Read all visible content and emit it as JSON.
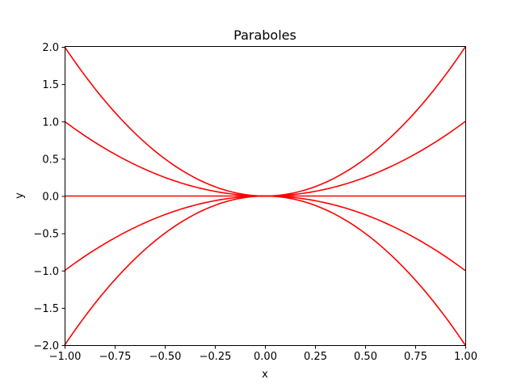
{
  "chart_data": {
    "type": "line",
    "title": "Paraboles",
    "xlabel": "x",
    "ylabel": "y",
    "xlim": [
      -1.0,
      1.0
    ],
    "ylim": [
      -2.0,
      2.0
    ],
    "xticks": [
      -1.0,
      -0.75,
      -0.5,
      -0.25,
      0.0,
      0.25,
      0.5,
      0.75,
      1.0
    ],
    "xtick_labels": [
      "−1.00",
      "−0.75",
      "−0.50",
      "−0.25",
      "0.00",
      "0.25",
      "0.50",
      "0.75",
      "1.00"
    ],
    "yticks": [
      -2.0,
      -1.5,
      -1.0,
      -0.5,
      0.0,
      0.5,
      1.0,
      1.5,
      2.0
    ],
    "ytick_labels": [
      "−2.0",
      "−1.5",
      "−1.0",
      "−0.5",
      "0.0",
      "0.5",
      "1.0",
      "1.5",
      "2.0"
    ],
    "grid": false,
    "line_color": "#ff0000",
    "series": [
      {
        "x": [
          -1.0,
          -0.75,
          -0.5,
          -0.25,
          0.0,
          0.25,
          0.5,
          0.75,
          1.0
        ],
        "y": [
          2.0,
          1.125,
          0.5,
          0.125,
          0.0,
          0.125,
          0.5,
          1.125,
          2.0
        ]
      },
      {
        "x": [
          -1.0,
          -0.75,
          -0.5,
          -0.25,
          0.0,
          0.25,
          0.5,
          0.75,
          1.0
        ],
        "y": [
          1.0,
          0.5625,
          0.25,
          0.0625,
          0.0,
          0.0625,
          0.25,
          0.5625,
          1.0
        ]
      },
      {
        "x": [
          -1.0,
          -0.75,
          -0.5,
          -0.25,
          0.0,
          0.25,
          0.5,
          0.75,
          1.0
        ],
        "y": [
          0.0,
          0.0,
          0.0,
          0.0,
          0.0,
          0.0,
          0.0,
          0.0,
          0.0
        ]
      },
      {
        "x": [
          -1.0,
          -0.75,
          -0.5,
          -0.25,
          0.0,
          0.25,
          0.5,
          0.75,
          1.0
        ],
        "y": [
          -1.0,
          -0.5625,
          -0.25,
          -0.0625,
          0.0,
          -0.0625,
          -0.25,
          -0.5625,
          -1.0
        ]
      },
      {
        "x": [
          -1.0,
          -0.75,
          -0.5,
          -0.25,
          0.0,
          0.25,
          0.5,
          0.75,
          1.0
        ],
        "y": [
          -2.0,
          -1.125,
          -0.5,
          -0.125,
          0.0,
          -0.125,
          -0.5,
          -1.125,
          -2.0
        ]
      }
    ]
  }
}
